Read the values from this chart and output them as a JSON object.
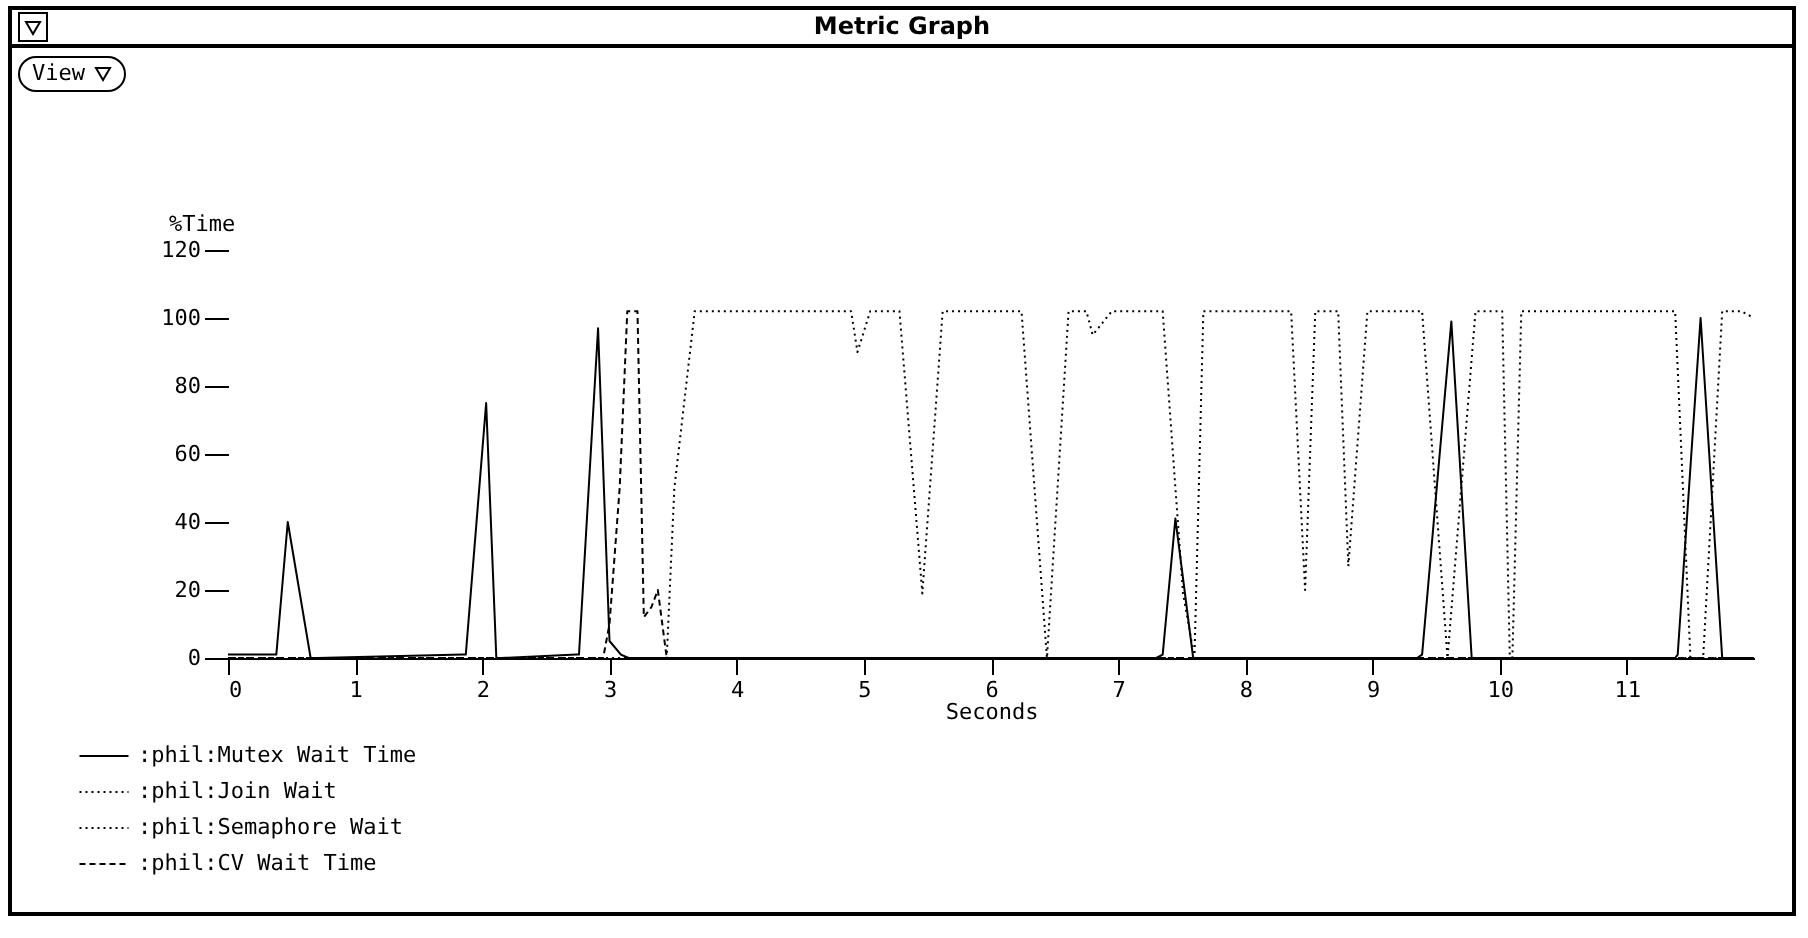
{
  "chart_data": {
    "type": "line",
    "title": "Metric Graph",
    "xlabel": "Seconds",
    "ylabel": "%Time",
    "annotations": [
      "View"
    ],
    "xlim": [
      0,
      12
    ],
    "xticks": [
      0,
      1,
      2,
      3,
      4,
      5,
      6,
      7,
      8,
      9,
      10,
      11
    ],
    "ylim": [
      0,
      120
    ],
    "yticks": [
      0,
      20,
      40,
      60,
      80,
      100,
      120
    ],
    "grid": false,
    "legend": "bottom left",
    "marker": "none",
    "series": [
      {
        "name": ":phil:Mutex Wait Time",
        "color": "#000000",
        "line_style": "solid",
        "x": [
          0,
          0.35,
          0.38,
          0.47,
          0.65,
          0.7,
          1.85,
          1.87,
          2.03,
          2.11,
          2.15,
          2.74,
          2.76,
          2.91,
          3.0,
          3.09,
          3.15,
          7.3,
          7.35,
          7.45,
          7.59,
          7.62,
          9.35,
          9.39,
          9.62,
          9.78,
          9.82,
          11.38,
          11.4,
          11.58,
          11.75,
          11.8,
          12
        ],
        "values": [
          1,
          1,
          1,
          40,
          0,
          0,
          1,
          1,
          75,
          0,
          0,
          1,
          1,
          97,
          5,
          1,
          0,
          0,
          1,
          41,
          0,
          0,
          0,
          1,
          99,
          0,
          0,
          0,
          1,
          100,
          0,
          0,
          0
        ]
      },
      {
        "name": ":phil:Join Wait",
        "color": "#000000",
        "line_style": "dotted",
        "x": [
          0,
          10.1,
          10.17,
          11.38,
          11.5,
          11.6,
          11.75,
          11.9,
          12
        ],
        "values": [
          0,
          0,
          102,
          102,
          0,
          0,
          102,
          102,
          100
        ]
      },
      {
        "name": ":phil:Semaphore Wait",
        "color": "#000000",
        "line_style": "dotted",
        "x": [
          0,
          3.45,
          3.51,
          3.67,
          4.9,
          4.95,
          5.05,
          5.28,
          5.46,
          5.62,
          6.24,
          6.44,
          6.61,
          6.75,
          6.8,
          6.95,
          7.35,
          7.51,
          7.6,
          7.67,
          8.36,
          8.47,
          8.55,
          8.73,
          8.81,
          8.96,
          9.39,
          9.59,
          9.81,
          10.02,
          10.08,
          10.12,
          12
        ],
        "values": [
          0,
          0,
          50,
          102,
          102,
          90,
          102,
          102,
          19,
          102,
          102,
          0,
          102,
          102,
          95,
          102,
          102,
          19,
          0,
          102,
          102,
          20,
          102,
          102,
          27,
          102,
          102,
          0,
          102,
          102,
          0,
          0,
          0
        ]
      },
      {
        "name": ":phil:CV Wait Time",
        "color": "#000000",
        "line_style": "dashed",
        "x": [
          0,
          2.95,
          3.0,
          3.08,
          3.14,
          3.22,
          3.27,
          3.33,
          3.38,
          3.45,
          12
        ],
        "values": [
          0,
          0,
          10,
          50,
          102,
          102,
          12,
          15,
          20,
          0,
          0
        ]
      }
    ]
  }
}
